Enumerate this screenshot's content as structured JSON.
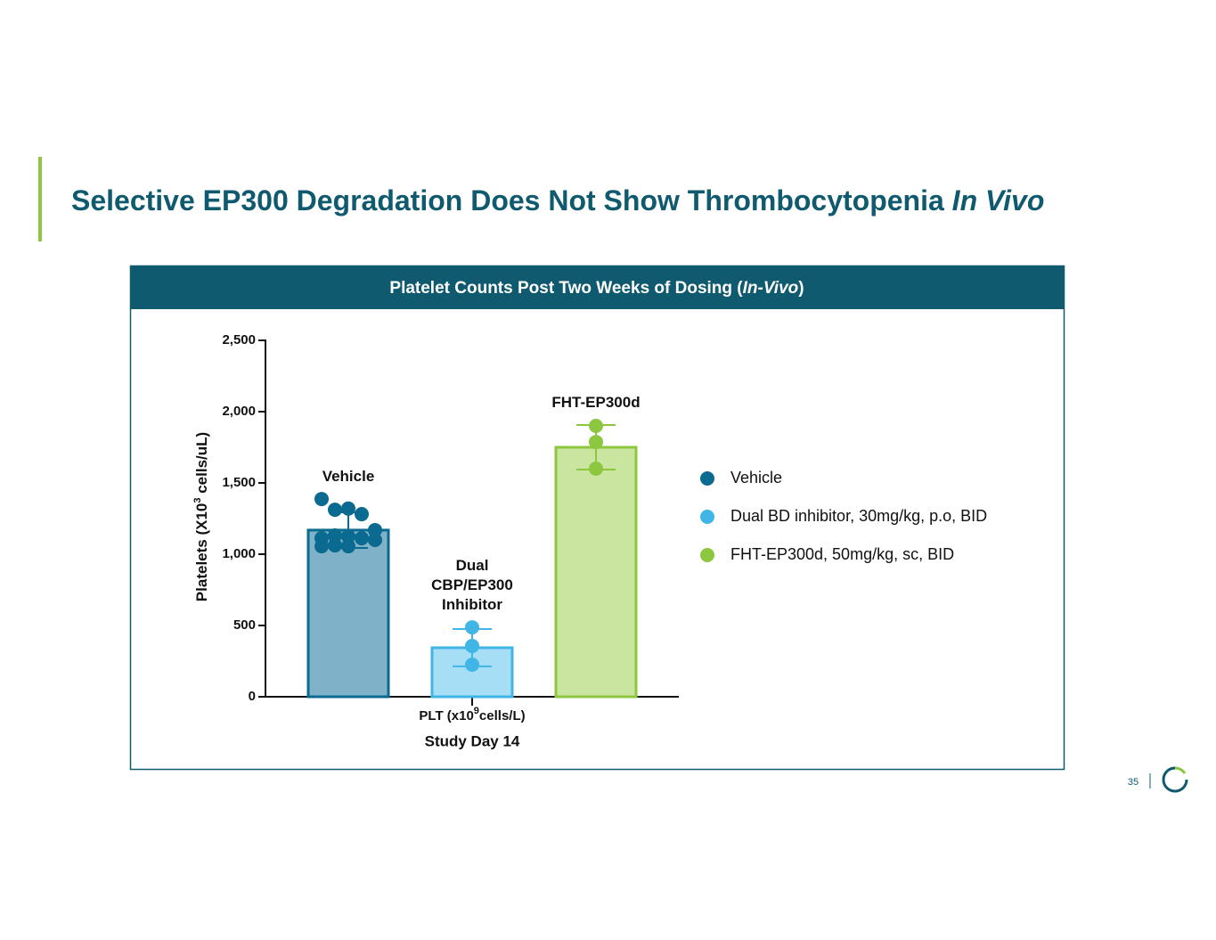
{
  "slide_title": {
    "parts": [
      {
        "text": "Selective EP300 Degradation Does Not Show Thrombocytopenia "
      },
      {
        "text": "In Vivo",
        "style": "italic"
      }
    ]
  },
  "panel_title": {
    "parts": [
      {
        "text": "Platelet Counts Post Two Weeks of Dosing ("
      },
      {
        "text": "In-Vivo",
        "style": "italic"
      },
      {
        "text": ")"
      }
    ]
  },
  "page_number": "35",
  "chart_data": {
    "type": "bar",
    "categories": [
      "Vehicle",
      "Dual CBP/EP300 Inhibitor",
      "FHT-EP300d"
    ],
    "series": [
      {
        "name": "Vehicle",
        "color": "#0b6a8f",
        "fill": "#7fb2c8",
        "value": 1169,
        "error": 125,
        "points": [
          1387,
          1312,
          1320,
          1281,
          1169,
          1112,
          1131,
          1125,
          1112,
          1100,
          1056,
          1062,
          1056
        ]
      },
      {
        "name": "Dual BD inhibitor, 30mg/kg, p.o, BID",
        "color": "#41b6e6",
        "fill": "#a6dff5",
        "value": 344,
        "error": 131,
        "points": [
          487,
          356,
          225
        ]
      },
      {
        "name": "FHT-EP300d, 50mg/kg, sc, BID",
        "color": "#8dc63f",
        "fill": "#c9e5a0",
        "value": 1750,
        "error": 156,
        "points": [
          1900,
          1787,
          1600
        ]
      }
    ],
    "ylabel": {
      "parts": [
        {
          "text": "Platelets  (X10"
        },
        {
          "text": "3",
          "style": "sup"
        },
        {
          "text": " cells/uL)"
        }
      ]
    },
    "xlabel": {
      "parts": [
        {
          "text": "PLT (x10"
        },
        {
          "text": "9",
          "style": "sup"
        },
        {
          "text": "cells/L)"
        }
      ]
    },
    "xsublabel": "Study Day 14",
    "ylim": [
      0,
      2500
    ],
    "yticks": [
      0,
      500,
      {
        "value": 1000,
        "label": "1,000"
      },
      {
        "value": 1500,
        "label": "1,500"
      },
      {
        "value": 2000,
        "label": "2,000"
      },
      {
        "value": 2500,
        "label": "2,500"
      }
    ],
    "legend": "right"
  }
}
